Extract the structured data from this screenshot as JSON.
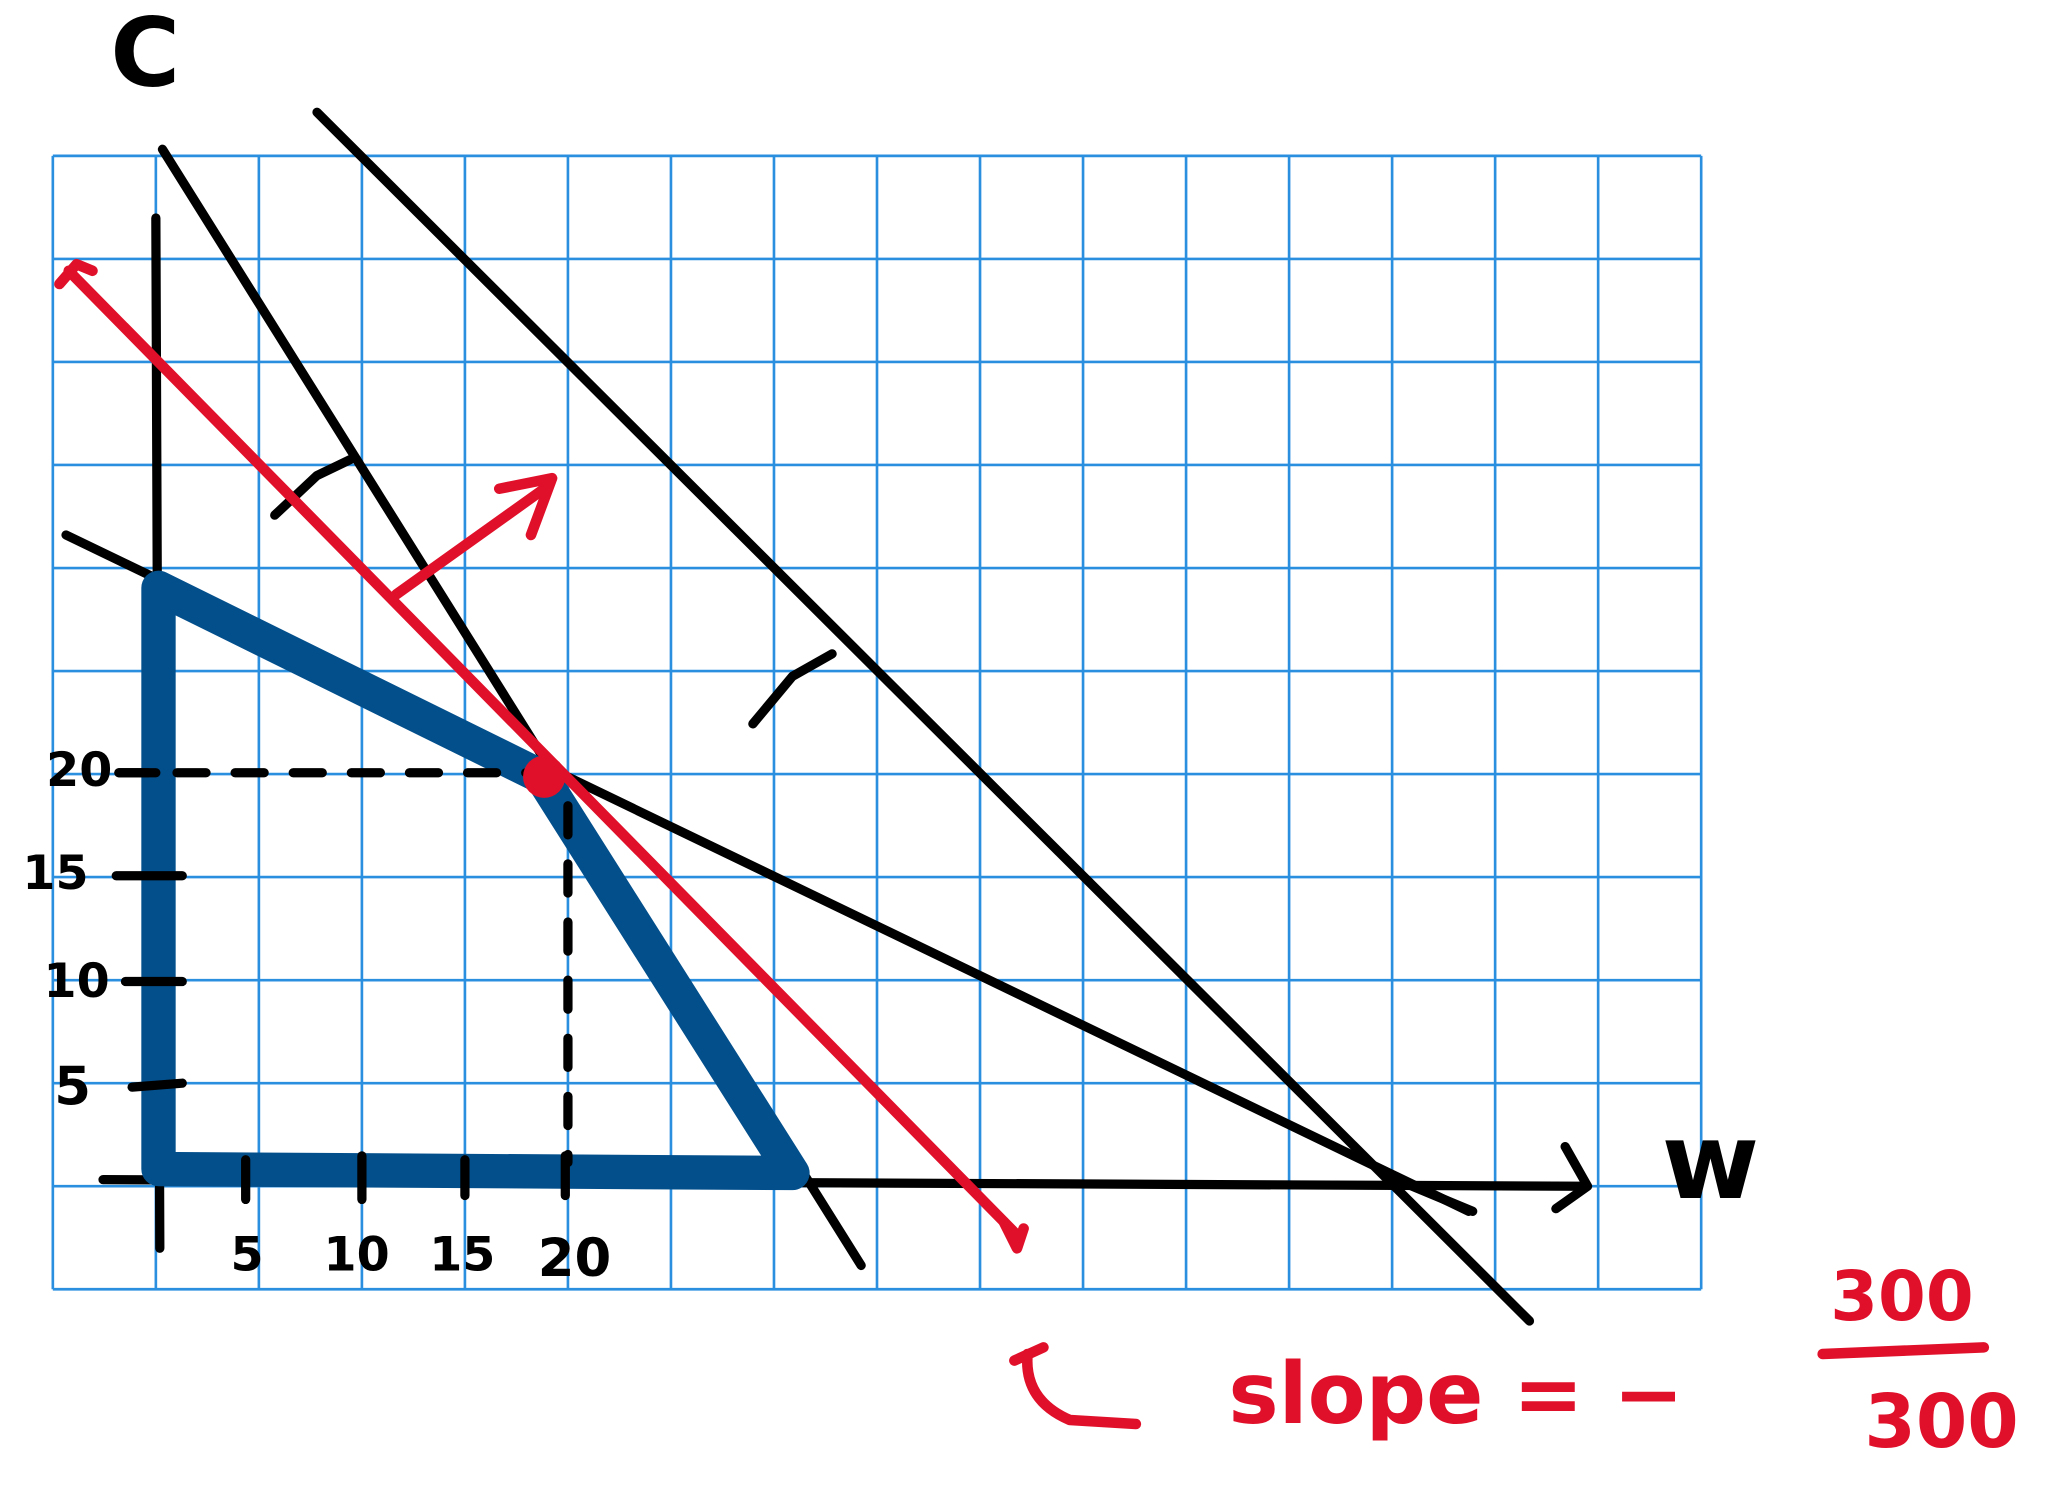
{
  "axes": {
    "y_label": "C",
    "x_label": "w",
    "x_ticks": [
      "5",
      "10",
      "15",
      "20"
    ],
    "y_ticks": [
      "5",
      "10",
      "15",
      "20"
    ]
  },
  "annotation": {
    "prefix": "slope = −",
    "numerator": "300",
    "denominator": "300"
  }
}
